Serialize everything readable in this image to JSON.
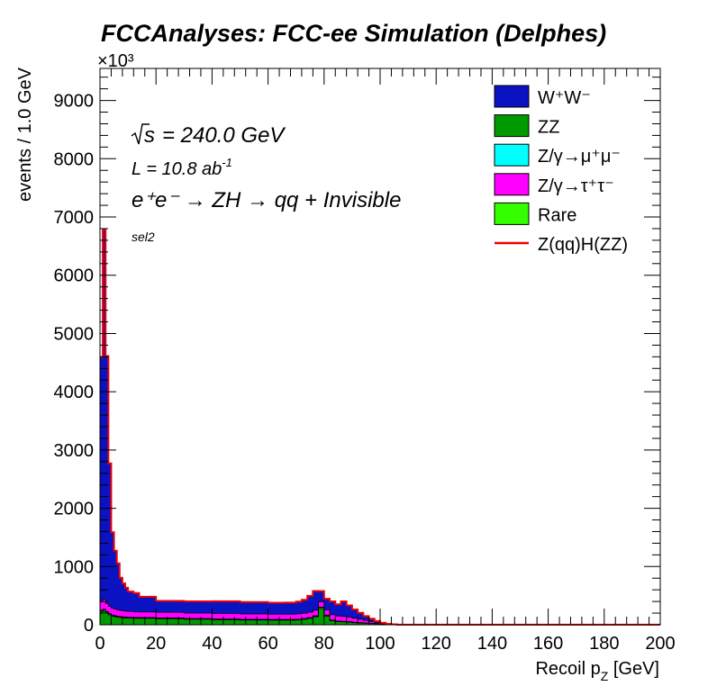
{
  "chart_data": {
    "type": "area",
    "stacked": true,
    "title": "FCCAnalyses: FCC-ee Simulation (Delphes)",
    "exponent_label": "×10³",
    "xlabel": "Recoil p_Z [GeV]",
    "xlabel_main": "Recoil p",
    "xlabel_sub": "Z",
    "xlabel_unit": " [GeV]",
    "ylabel": "events / 1.0 GeV",
    "xlim": [
      0,
      200
    ],
    "ylim": [
      0,
      9550
    ],
    "x_ticks": [
      "0",
      "20",
      "40",
      "60",
      "80",
      "100",
      "120",
      "140",
      "160",
      "180",
      "200"
    ],
    "y_ticks": [
      "0",
      "1000",
      "2000",
      "3000",
      "4000",
      "5000",
      "6000",
      "7000",
      "8000",
      "9000"
    ],
    "grid": false,
    "legend_position": "top-right",
    "annotations": {
      "sqrt_s": "= 240.0 GeV",
      "lumi_prefix": "L = 10.8 ab",
      "lumi_exp": "-1",
      "process": "e⁺e⁻ → ZH → qq + Invisible",
      "selection": "sel2"
    },
    "legend": [
      {
        "key": "ww",
        "label": "W⁺W⁻",
        "color": "#0a12c2",
        "style": "fill"
      },
      {
        "key": "zz",
        "label": "ZZ",
        "color": "#009900",
        "style": "fill"
      },
      {
        "key": "zmumu",
        "label": "Z/γ→μ⁺μ⁻",
        "color": "#00ffff",
        "style": "fill"
      },
      {
        "key": "ztautau",
        "label": "Z/γ→τ⁺τ⁻",
        "color": "#ff00ff",
        "style": "fill"
      },
      {
        "key": "rare",
        "label": "Rare",
        "color": "#33ff00",
        "style": "fill"
      },
      {
        "key": "signal",
        "label": "Z(qq)H(ZZ)",
        "color": "#ee0000",
        "style": "line"
      }
    ],
    "x_bins": [
      0,
      1,
      2,
      3,
      4,
      5,
      6,
      7,
      8,
      9,
      10,
      12,
      14,
      20,
      30,
      40,
      50,
      60,
      66,
      70,
      72,
      74,
      76,
      78,
      80,
      82,
      84,
      86,
      88,
      90,
      92,
      94,
      96,
      98,
      100,
      102,
      104,
      106,
      200
    ],
    "series": [
      {
        "key": "zz",
        "values": [
          220,
          240,
          200,
          170,
          150,
          140,
          130,
          125,
          120,
          118,
          115,
          112,
          110,
          105,
          95,
          88,
          82,
          80,
          80,
          85,
          95,
          110,
          140,
          280,
          150,
          70,
          55,
          50,
          45,
          35,
          30,
          25,
          20,
          15,
          10,
          6,
          3,
          1
        ]
      },
      {
        "key": "rare",
        "values": [
          20,
          22,
          18,
          16,
          14,
          13,
          12,
          12,
          11,
          11,
          10,
          10,
          10,
          10,
          9,
          9,
          8,
          8,
          8,
          8,
          9,
          10,
          12,
          18,
          12,
          8,
          7,
          6,
          6,
          5,
          4,
          3,
          3,
          2,
          2,
          1,
          1,
          0
        ]
      },
      {
        "key": "zmumu",
        "values": [
          6,
          6,
          5,
          4,
          4,
          3,
          3,
          3,
          3,
          3,
          3,
          3,
          3,
          3,
          2,
          2,
          2,
          2,
          2,
          2,
          2,
          3,
          3,
          4,
          3,
          2,
          2,
          2,
          2,
          2,
          1,
          1,
          1,
          1,
          0,
          0,
          0,
          0
        ]
      },
      {
        "key": "ztautau",
        "values": [
          150,
          170,
          140,
          130,
          120,
          115,
          110,
          108,
          105,
          103,
          102,
          100,
          98,
          96,
          95,
          94,
          94,
          92,
          92,
          92,
          92,
          93,
          95,
          95,
          92,
          92,
          88,
          85,
          80,
          70,
          60,
          45,
          30,
          15,
          8,
          3,
          1,
          0
        ]
      },
      {
        "key": "ww",
        "values": [
          4200,
          6350,
          4250,
          2450,
          1300,
          1000,
          800,
          560,
          470,
          400,
          340,
          320,
          260,
          195,
          200,
          210,
          205,
          196,
          198,
          210,
          230,
          280,
          330,
          180,
          190,
          230,
          200,
          258,
          200,
          150,
          110,
          75,
          50,
          30,
          15,
          6,
          2,
          0
        ]
      },
      {
        "key": "signal",
        "values": [
          0,
          0,
          0,
          0,
          0,
          0,
          0,
          0,
          0,
          0,
          0,
          0,
          0,
          0,
          0,
          0,
          0,
          0,
          0,
          0,
          0,
          0,
          0,
          0,
          0,
          0,
          0,
          0,
          0,
          0,
          0,
          0,
          0,
          0,
          0,
          0,
          0,
          0
        ]
      }
    ]
  }
}
